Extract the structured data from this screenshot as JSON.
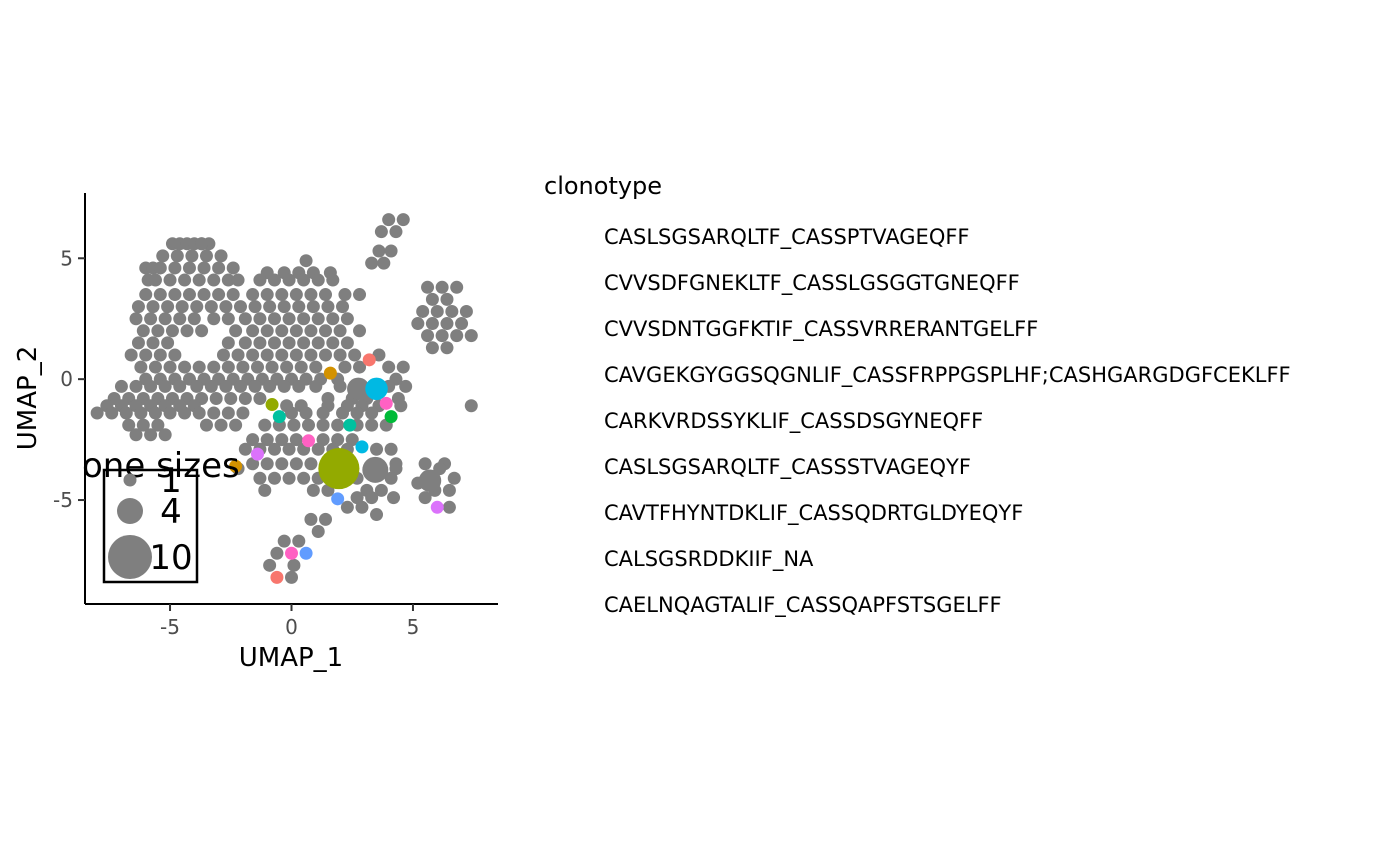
{
  "chart_data": {
    "type": "scatter",
    "title": "",
    "xlabel": "UMAP_1",
    "ylabel": "UMAP_2",
    "xlim": [
      -8.5,
      8.5
    ],
    "ylim": [
      -9.3,
      7.7
    ],
    "xticks": [
      -5,
      0,
      5
    ],
    "yticks": [
      -5,
      0,
      5
    ],
    "grid": false,
    "legend_placement": "right",
    "legend_title": "clonotype",
    "size_legend": {
      "title": "one sizes",
      "placement": "bottom-left, overlapping plot",
      "entries": [
        {
          "label": "1",
          "size": 1
        },
        {
          "label": "4",
          "size": 4
        },
        {
          "label": "10",
          "size": 10
        }
      ]
    },
    "background_color": "#7f7f7f",
    "series": [
      {
        "name": "CASLSGSARQLTF_CASSPTVAGEQFF",
        "color": "#F8766D",
        "points": [
          [
            3.2,
            0.8,
            1
          ],
          [
            -0.6,
            -8.2,
            1
          ]
        ]
      },
      {
        "name": "CVVSDFGNEKLTF_CASSLGSGGTGNEQFF",
        "color": "#D39200",
        "points": [
          [
            1.6,
            0.25,
            1
          ],
          [
            -2.3,
            -3.6,
            1
          ]
        ]
      },
      {
        "name": "CVVSDNTGGFKTIF_CASSVRRERANTGELFF",
        "color": "#93AA00",
        "points": [
          [
            -0.8,
            -1.05,
            1
          ]
        ]
      },
      {
        "name": "CAVGEKGYGGSQGNLIF_CASSFRPPGSPLHF;CASHGARGDGFCEKLFF",
        "color": "#00BA38",
        "points": [
          [
            4.1,
            -1.55,
            1
          ]
        ]
      },
      {
        "name": "CARKVRDSSYKLIF_CASSDSGYNEQFF",
        "color": "#00C19F",
        "points": [
          [
            -0.5,
            -1.55,
            1
          ],
          [
            2.4,
            -1.9,
            1
          ]
        ]
      },
      {
        "name": "CASLSGSARQLTF_CASSSTVAGEQYF",
        "color": "#00B9E3",
        "points": [
          [
            3.5,
            -0.4,
            3
          ],
          [
            2.9,
            -2.8,
            1
          ]
        ]
      },
      {
        "name": "CAVTFHYNTDKLIF_CASSQDRTGLDYEQYF",
        "color": "#619CFF",
        "points": [
          [
            1.9,
            -4.95,
            1
          ],
          [
            0.6,
            -7.2,
            1
          ]
        ]
      },
      {
        "name": "CALSGSRDDKIIF_NA",
        "color": "#DB72FB",
        "points": [
          [
            -1.4,
            -3.1,
            1
          ],
          [
            6,
            -5.3,
            1
          ]
        ]
      },
      {
        "name": "CAELNQAGTALIF_CASSQAPFSTSGELFF",
        "color": "#FF61C3",
        "points": [
          [
            3.9,
            -1.0,
            1
          ],
          [
            0.7,
            -2.55,
            1
          ],
          [
            0,
            -7.2,
            1
          ]
        ]
      }
    ],
    "large_points": [
      {
        "x": 1.95,
        "y": -3.7,
        "size": 10,
        "color": "#93AA00"
      },
      {
        "x": 3.45,
        "y": -3.75,
        "size": 4,
        "color": "#7f7f7f"
      },
      {
        "x": 2.75,
        "y": -0.4,
        "size": 3,
        "color": "#7f7f7f"
      },
      {
        "x": 5.7,
        "y": -4.2,
        "size": 3,
        "color": "#7f7f7f"
      }
    ]
  }
}
